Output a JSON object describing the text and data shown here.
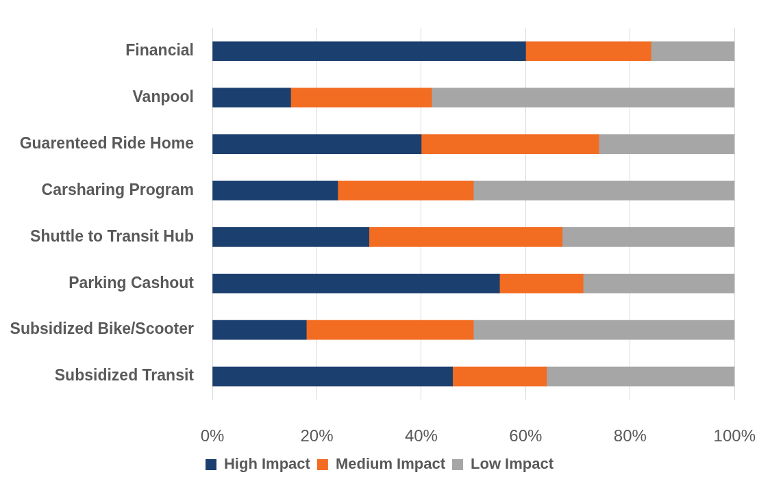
{
  "chart_data": {
    "type": "bar",
    "orientation": "horizontal",
    "stacked": true,
    "categories": [
      "Financial",
      "Vanpool",
      "Guarenteed Ride Home",
      "Carsharing Program",
      "Shuttle to Transit Hub",
      "Parking Cashout",
      "Subsidized Bike/Scooter",
      "Subsidized Transit"
    ],
    "series": [
      {
        "name": "High Impact",
        "color": "#1b3f6e",
        "values": [
          60,
          15,
          40,
          24,
          30,
          55,
          18,
          46
        ]
      },
      {
        "name": "Medium Impact",
        "color": "#f26c22",
        "values": [
          24,
          27,
          34,
          26,
          37,
          16,
          32,
          18
        ]
      },
      {
        "name": "Low Impact",
        "color": "#a6a6a6",
        "values": [
          16,
          58,
          26,
          50,
          33,
          29,
          50,
          36
        ]
      }
    ],
    "xlim": [
      0,
      100
    ],
    "xticks": [
      {
        "value": 0,
        "label": "0%"
      },
      {
        "value": 20,
        "label": "20%"
      },
      {
        "value": 40,
        "label": "40%"
      },
      {
        "value": 60,
        "label": "60%"
      },
      {
        "value": 80,
        "label": "80%"
      },
      {
        "value": 100,
        "label": "100%"
      }
    ],
    "grid": "x",
    "legend": "bottom"
  }
}
